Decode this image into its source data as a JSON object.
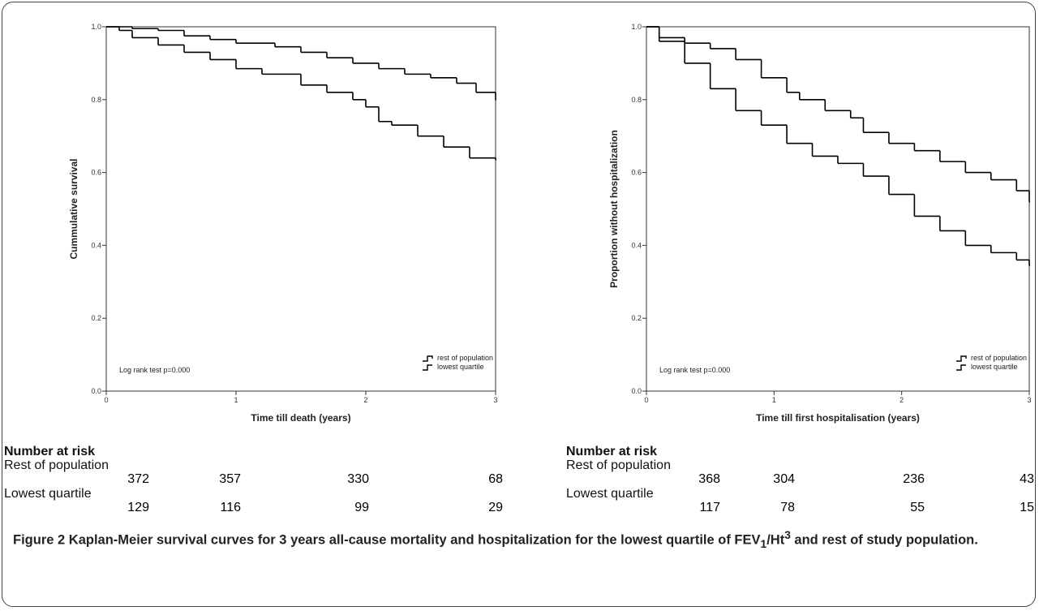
{
  "chart_data": [
    {
      "type": "line",
      "step": true,
      "y_label": "Cummulative survival",
      "x_label": "Time till death (years)",
      "annotation": "Log rank test p=0.000",
      "xlim": [
        0,
        3
      ],
      "xticks": [
        0,
        1,
        2,
        3
      ],
      "ylim": [
        0,
        1
      ],
      "yticks": [
        {
          "value": 0,
          "label": "0.0"
        },
        {
          "value": 0.2,
          "label": "0.2"
        },
        {
          "value": 0.4,
          "label": "0.4"
        },
        {
          "value": 0.6,
          "label": "0.6"
        },
        {
          "value": 0.8,
          "label": "0.8"
        },
        {
          "value": 1,
          "label": "1.0"
        }
      ],
      "series": [
        {
          "name": "rest of population",
          "color": "#000000",
          "x": [
            0,
            0.2,
            0.4,
            0.6,
            0.8,
            1.0,
            1.3,
            1.5,
            1.7,
            1.9,
            2.1,
            2.3,
            2.5,
            2.7,
            2.85,
            3
          ],
          "values": [
            1,
            0.995,
            0.99,
            0.975,
            0.965,
            0.955,
            0.945,
            0.93,
            0.915,
            0.9,
            0.885,
            0.87,
            0.86,
            0.845,
            0.82,
            0.8
          ]
        },
        {
          "name": "lowest quartile",
          "color": "#000000",
          "x": [
            0,
            0.1,
            0.2,
            0.4,
            0.6,
            0.8,
            1.0,
            1.2,
            1.5,
            1.7,
            1.9,
            2.0,
            2.1,
            2.2,
            2.4,
            2.6,
            2.8,
            3
          ],
          "values": [
            1,
            0.99,
            0.97,
            0.95,
            0.93,
            0.91,
            0.885,
            0.87,
            0.84,
            0.82,
            0.8,
            0.78,
            0.74,
            0.73,
            0.7,
            0.67,
            0.64,
            0.635
          ]
        }
      ]
    },
    {
      "type": "line",
      "step": true,
      "y_label": "Proportion without hospitalization",
      "x_label": "Time till first hospitalisation (years)",
      "annotation": "Log rank test p=0.000",
      "xlim": [
        0,
        3
      ],
      "xticks": [
        0,
        1,
        2,
        3
      ],
      "ylim": [
        0,
        1
      ],
      "yticks": [
        {
          "value": 0,
          "label": "0.0"
        },
        {
          "value": 0.2,
          "label": "0.2"
        },
        {
          "value": 0.4,
          "label": "0.4"
        },
        {
          "value": 0.6,
          "label": "0.6"
        },
        {
          "value": 0.8,
          "label": "0.8"
        },
        {
          "value": 1,
          "label": "1.0"
        }
      ],
      "series": [
        {
          "name": "rest of population",
          "color": "#000000",
          "x": [
            0,
            0.1,
            0.3,
            0.5,
            0.7,
            0.9,
            1.1,
            1.2,
            1.4,
            1.6,
            1.7,
            1.9,
            2.1,
            2.3,
            2.5,
            2.7,
            2.9,
            3
          ],
          "values": [
            1,
            0.97,
            0.955,
            0.94,
            0.91,
            0.86,
            0.82,
            0.8,
            0.77,
            0.75,
            0.71,
            0.68,
            0.66,
            0.63,
            0.6,
            0.58,
            0.55,
            0.52
          ]
        },
        {
          "name": "lowest quartile",
          "color": "#000000",
          "x": [
            0,
            0.1,
            0.3,
            0.5,
            0.7,
            0.9,
            1.1,
            1.3,
            1.5,
            1.7,
            1.9,
            2.1,
            2.3,
            2.5,
            2.7,
            2.9,
            3
          ],
          "values": [
            1,
            0.96,
            0.9,
            0.83,
            0.77,
            0.73,
            0.68,
            0.645,
            0.625,
            0.59,
            0.54,
            0.48,
            0.44,
            0.4,
            0.38,
            0.36,
            0.345
          ]
        }
      ]
    }
  ],
  "risk_tables": [
    {
      "title": "Number at risk",
      "groups": [
        {
          "name": "Rest of population",
          "counts": [
            372,
            357,
            330,
            68
          ]
        },
        {
          "name": "Lowest quartile",
          "counts": [
            129,
            116,
            99,
            29
          ]
        }
      ]
    },
    {
      "title": "Number at risk",
      "groups": [
        {
          "name": "Rest of population",
          "counts": [
            368,
            304,
            236,
            43
          ]
        },
        {
          "name": "Lowest quartile",
          "counts": [
            117,
            78,
            55,
            15
          ]
        }
      ]
    }
  ],
  "caption": {
    "label": "Figure 2",
    "parts": [
      "Kaplan-Meier survival curves for 3 years all-cause mortality and hospitalization for the lowest quartile of FEV",
      "1",
      "/Ht",
      "3",
      " and rest of study population."
    ]
  }
}
